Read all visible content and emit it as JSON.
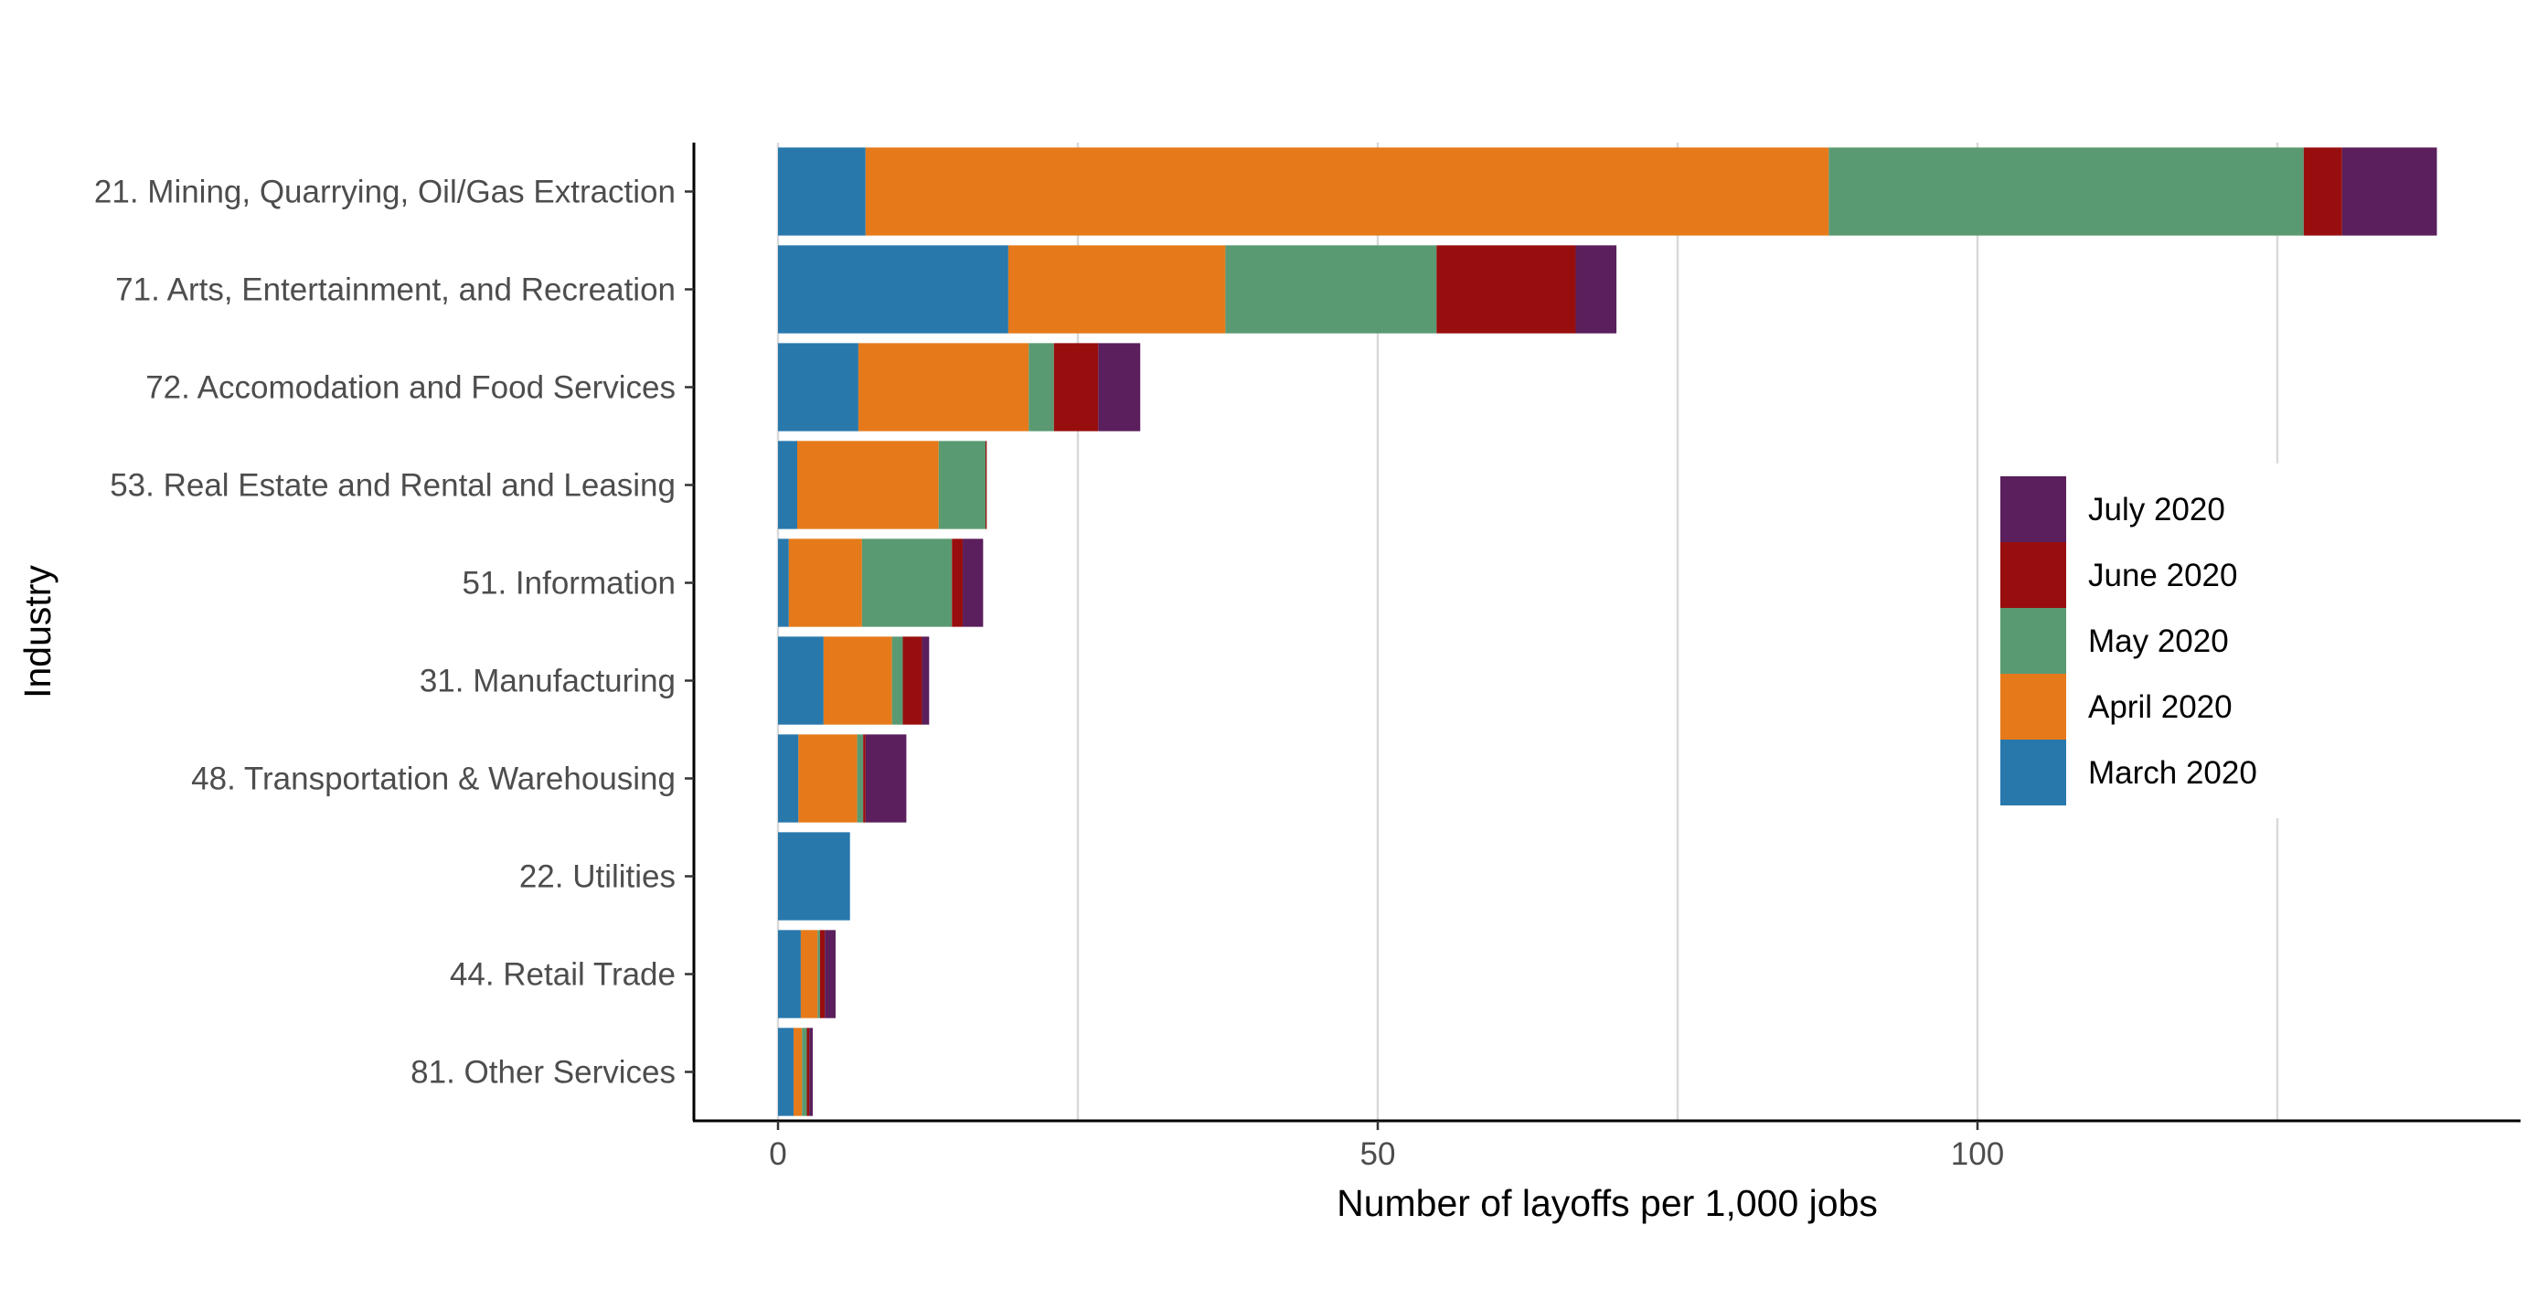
{
  "chart_data": {
    "type": "bar",
    "orientation": "horizontal",
    "stacked": true,
    "title": "",
    "xlabel": "Number of layoffs per 1,000 jobs",
    "ylabel": "Industry",
    "xlim": [
      -7,
      145
    ],
    "xticks": [
      0,
      50,
      100
    ],
    "grid": "vertical major and minor",
    "legend_position": "right",
    "categories": [
      "21. Mining, Quarrying, Oil/Gas Extraction",
      "71. Arts, Entertainment, and Recreation",
      "72. Accomodation and Food Services",
      "53. Real Estate and Rental and Leasing",
      "51. Information",
      "31. Manufacturing",
      "48. Transportation & Warehousing",
      "22. Utilities",
      "44. Retail Trade",
      "81. Other Services"
    ],
    "series": [
      {
        "name": "March 2020",
        "color": "#2878ac",
        "values": [
          7.3,
          19.2,
          6.7,
          1.6,
          0.9,
          3.8,
          1.7,
          6.0,
          1.9,
          1.3
        ]
      },
      {
        "name": "April 2020",
        "color": "#e67a1a",
        "values": [
          80.3,
          18.1,
          14.2,
          11.8,
          6.1,
          5.7,
          4.9,
          0,
          1.4,
          0.7
        ]
      },
      {
        "name": "May 2020",
        "color": "#5a9a72",
        "values": [
          39.6,
          17.6,
          2.1,
          3.9,
          7.5,
          0.9,
          0.5,
          0,
          0.2,
          0.4
        ]
      },
      {
        "name": "June 2020",
        "color": "#980e0e",
        "values": [
          3.2,
          11.6,
          3.7,
          0.1,
          0.9,
          1.6,
          0.2,
          0,
          0.4,
          0.2
        ]
      },
      {
        "name": "July 2020",
        "color": "#5a1f5c",
        "values": [
          7.9,
          3.4,
          3.5,
          0,
          1.7,
          0.6,
          3.4,
          0,
          0.9,
          0.3
        ]
      }
    ],
    "legend_order": [
      "July 2020",
      "June 2020",
      "May 2020",
      "April 2020",
      "March 2020"
    ]
  }
}
